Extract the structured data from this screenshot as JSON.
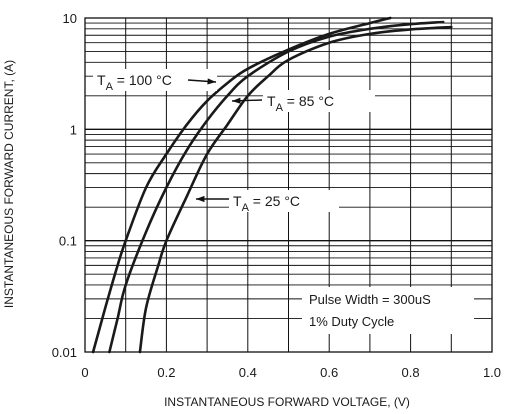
{
  "chart_data": {
    "type": "line",
    "xlabel": "INSTANTANEOUS FORWARD VOLTAGE, (V)",
    "ylabel": "INSTANTANEOUS FORWARD CURRENT, (A)",
    "xlim": [
      0,
      1.0
    ],
    "ylim": [
      0.01,
      10
    ],
    "yscale": "log",
    "grid": true,
    "x_ticks": [
      "0",
      "0.2",
      "0.4",
      "0.6",
      "0.8",
      "1.0"
    ],
    "y_ticks": [
      "0.01",
      "0.1",
      "1",
      "10"
    ],
    "series": [
      {
        "name": "TA = 100 °C",
        "points": [
          [
            0.02,
            0.01
          ],
          [
            0.05,
            0.025
          ],
          [
            0.08,
            0.06
          ],
          [
            0.1,
            0.1
          ],
          [
            0.15,
            0.3
          ],
          [
            0.2,
            0.6
          ],
          [
            0.25,
            1.1
          ],
          [
            0.3,
            1.8
          ],
          [
            0.35,
            2.6
          ],
          [
            0.4,
            3.5
          ],
          [
            0.5,
            5.2
          ],
          [
            0.6,
            7.2
          ],
          [
            0.7,
            9.0
          ],
          [
            0.75,
            10.0
          ]
        ]
      },
      {
        "name": "TA = 85 °C",
        "points": [
          [
            0.06,
            0.01
          ],
          [
            0.08,
            0.02
          ],
          [
            0.1,
            0.04
          ],
          [
            0.15,
            0.12
          ],
          [
            0.2,
            0.3
          ],
          [
            0.25,
            0.65
          ],
          [
            0.3,
            1.2
          ],
          [
            0.35,
            2.0
          ],
          [
            0.4,
            3.0
          ],
          [
            0.5,
            5.0
          ],
          [
            0.6,
            6.8
          ],
          [
            0.7,
            8.0
          ],
          [
            0.8,
            8.8
          ],
          [
            0.88,
            9.2
          ]
        ]
      },
      {
        "name": "TA = 25 °C",
        "points": [
          [
            0.135,
            0.01
          ],
          [
            0.15,
            0.025
          ],
          [
            0.18,
            0.06
          ],
          [
            0.2,
            0.1
          ],
          [
            0.25,
            0.25
          ],
          [
            0.3,
            0.6
          ],
          [
            0.35,
            1.1
          ],
          [
            0.4,
            2.0
          ],
          [
            0.45,
            3.0
          ],
          [
            0.5,
            4.2
          ],
          [
            0.6,
            6.0
          ],
          [
            0.7,
            7.2
          ],
          [
            0.8,
            7.9
          ],
          [
            0.9,
            8.3
          ]
        ]
      }
    ],
    "annotations": [
      {
        "label": "T",
        "sub": "A",
        "text": " = 100 °C",
        "series": 0
      },
      {
        "label": "T",
        "sub": "A",
        "text": " = 85 °C",
        "series": 1
      },
      {
        "label": "T",
        "sub": "A",
        "text": " = 25 °C",
        "series": 2
      }
    ],
    "notes": [
      "Pulse Width = 300uS",
      "1% Duty Cycle"
    ]
  }
}
